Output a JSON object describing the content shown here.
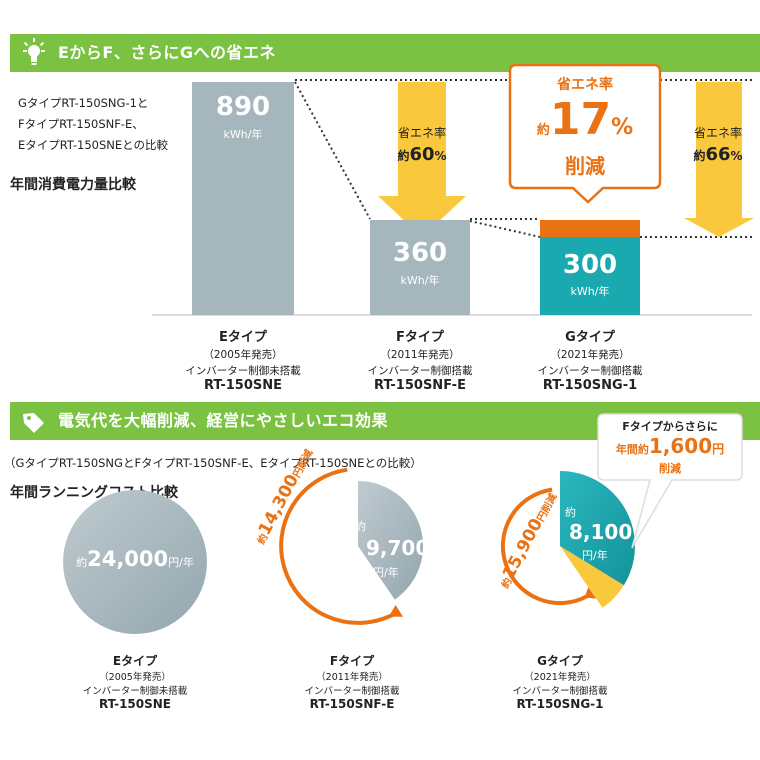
{
  "section1": {
    "title": "EからF、さらにGへの省エネ",
    "compare_note": [
      "GタイプRT-150SNG-1と",
      "FタイプRT-150SNF-E、",
      "EタイプRT-150SNEとの比較"
    ],
    "chart_title": "年間消費電力量比較",
    "bars": [
      {
        "value": "890",
        "unit": "kWh/年",
        "type": "Eタイプ",
        "year": "（2005年発売）",
        "inverter": "インバーター制御未搭載",
        "model": "RT-150SNE"
      },
      {
        "value": "360",
        "unit": "kWh/年",
        "type": "Fタイプ",
        "year": "（2011年発売）",
        "inverter": "インバーター制御搭載",
        "model": "RT-150SNF-E"
      },
      {
        "value": "300",
        "unit": "kWh/年",
        "type": "Gタイプ",
        "year": "（2021年発売）",
        "inverter": "インバーター制御搭載",
        "model": "RT-150SNG-1"
      }
    ],
    "arrow_left": {
      "label": "省エネ率",
      "prefix": "約",
      "value": "60",
      "pct": "%"
    },
    "arrow_right": {
      "label": "省エネ率",
      "prefix": "約",
      "value": "66",
      "pct": "%"
    },
    "callout": {
      "label": "省エネ率",
      "prefix": "約",
      "value": "17",
      "pct": "%",
      "suffix": "削減"
    },
    "colors": {
      "gray": "#a5b6bd",
      "teal": "#1ba9b0",
      "orange": "#ea7212",
      "yellow": "#f9c83c",
      "green": "#7cc242"
    }
  },
  "section2": {
    "title": "電気代を大幅削減、経営にやさしいエコ効果",
    "compare_note": "（GタイプRT-150SNGとFタイプRT-150SNF-E、EタイプRT-150SNEとの比較）",
    "chart_title": "年間ランニングコスト比較",
    "callout": {
      "line1": "Fタイプからさらに",
      "pre": "年間約",
      "value": "1,600",
      "unit": "円",
      "suffix": "削減"
    },
    "pies": [
      {
        "prefix": "約",
        "value": "24,000",
        "unit": "円/年",
        "type": "Eタイプ",
        "year": "（2005年発売）",
        "inverter": "インバーター制御未搭載",
        "model": "RT-150SNE"
      },
      {
        "prefix": "約",
        "value": "9,700",
        "unit": "円/年",
        "saving_prefix": "約",
        "saving_value": "14,300",
        "saving_unit": "円削減",
        "type": "Fタイプ",
        "year": "（2011年発売）",
        "inverter": "インバーター制御搭載",
        "model": "RT-150SNF-E"
      },
      {
        "prefix": "約",
        "value": "8,100",
        "unit": "円/年",
        "saving_prefix": "約",
        "saving_value": "15,900",
        "saving_unit": "円削減",
        "type": "Gタイプ",
        "year": "（2021年発売）",
        "inverter": "インバーター制御搭載",
        "model": "RT-150SNG-1"
      }
    ]
  },
  "chart_data": [
    {
      "type": "bar",
      "title": "年間消費電力量比較",
      "categories": [
        "Eタイプ",
        "Fタイプ",
        "Gタイプ"
      ],
      "values": [
        890,
        360,
        300
      ],
      "unit": "kWh/年",
      "ylim": [
        0,
        890
      ]
    },
    {
      "type": "pie",
      "title": "年間ランニングコスト比較",
      "categories": [
        "Eタイプ",
        "Fタイプ",
        "Gタイプ"
      ],
      "values": [
        24000,
        9700,
        8100
      ],
      "savings_vs_E": [
        0,
        14300,
        15900
      ],
      "unit": "円/年"
    }
  ]
}
